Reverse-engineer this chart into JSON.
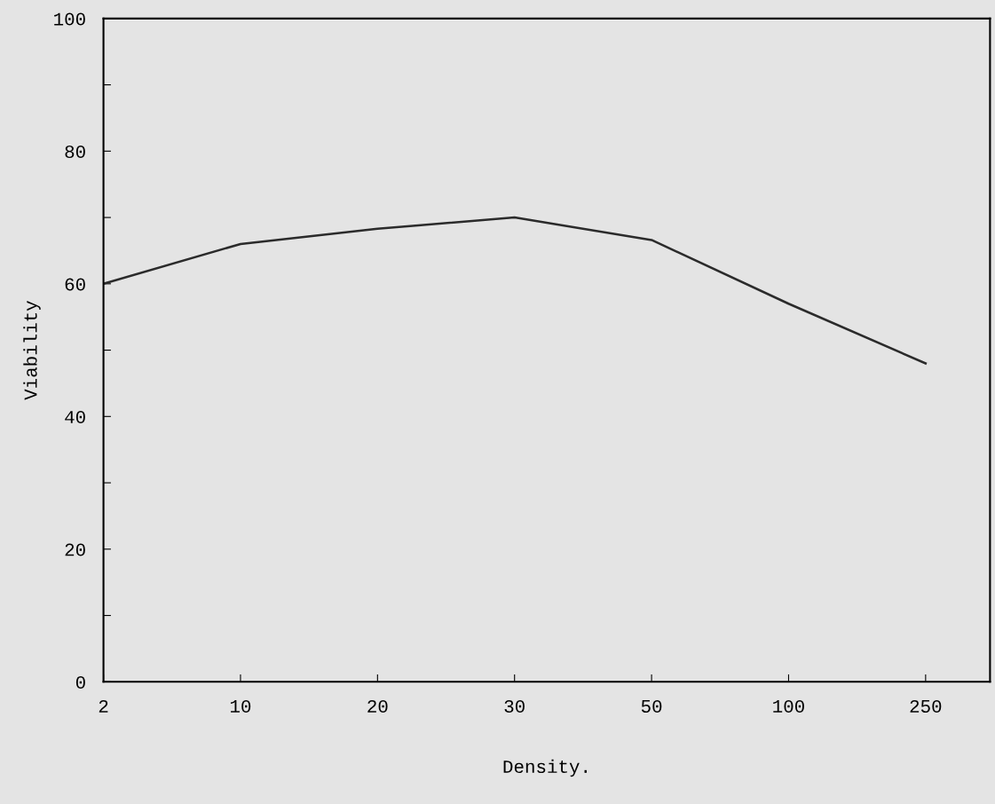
{
  "chart_data": {
    "type": "line",
    "xlabel": "Density.",
    "ylabel": "Viability",
    "categories": [
      "2",
      "10",
      "20",
      "30",
      "50",
      "100",
      "250"
    ],
    "series": [
      {
        "color": "#2b2b2b",
        "values": [
          60,
          66,
          68.3,
          70,
          66.6,
          57,
          48
        ]
      }
    ],
    "ylim": [
      0,
      100
    ],
    "yticks": [
      0,
      {
        "value": 10,
        "label": null
      },
      20,
      {
        "value": 30,
        "label": null
      },
      40,
      {
        "value": 50,
        "label": null
      },
      60,
      {
        "value": 70,
        "label": null
      },
      80,
      {
        "value": 90,
        "label": null
      },
      100
    ],
    "grid": false,
    "legend": false,
    "marker": "none",
    "line_style": "solid"
  }
}
